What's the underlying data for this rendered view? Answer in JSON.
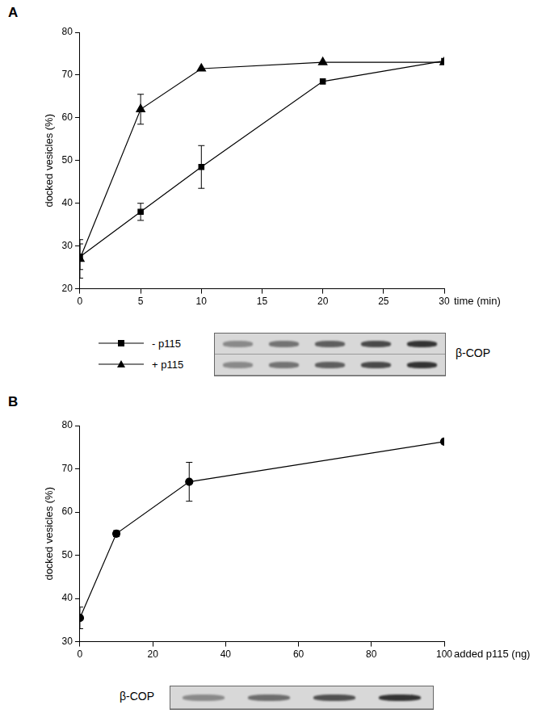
{
  "chart_data": [
    {
      "panel_label": "A",
      "type": "line",
      "x": [
        0,
        5,
        10,
        20,
        30
      ],
      "series": [
        {
          "name": "- p115",
          "color": "#000000",
          "marker": "square",
          "line_style": "solid",
          "values": [
            27.5,
            38,
            48.5,
            68.5,
            73.3
          ],
          "errors": [
            3,
            2,
            5,
            null,
            null
          ]
        },
        {
          "name": "+ p115",
          "color": "#000000",
          "marker": "triangle",
          "line_style": "solid",
          "values": [
            27,
            62,
            71.5,
            73,
            73
          ],
          "errors": [
            4.5,
            3.5,
            null,
            null,
            null
          ]
        }
      ],
      "x_label": "time (min)",
      "y_label": "docked vesicles (%)",
      "xlim": [
        0,
        30
      ],
      "xticks": [
        0,
        5,
        10,
        15,
        20,
        25,
        30
      ],
      "ylim": [
        20,
        80
      ],
      "yticks": [
        20,
        30,
        40,
        50,
        60,
        70,
        80
      ],
      "grid": false,
      "legend": "bottom left",
      "blot_label": "β-COP"
    },
    {
      "panel_label": "B",
      "type": "line",
      "x": [
        0,
        10,
        30,
        100
      ],
      "values": [
        35.5,
        55,
        67,
        76.3
      ],
      "errors": [
        2.5,
        0.7,
        4.5,
        null
      ],
      "color": "#000000",
      "marker": "circle",
      "line_style": "solid",
      "x_label": "added p115 (ng)",
      "y_label": "docked vesicles (%)",
      "xlim": [
        0,
        100
      ],
      "xticks": [
        0,
        20,
        40,
        60,
        80,
        100
      ],
      "ylim": [
        30,
        80
      ],
      "yticks": [
        30,
        40,
        50,
        60,
        70,
        80
      ],
      "grid": false,
      "blot_label": "β-COP"
    }
  ]
}
